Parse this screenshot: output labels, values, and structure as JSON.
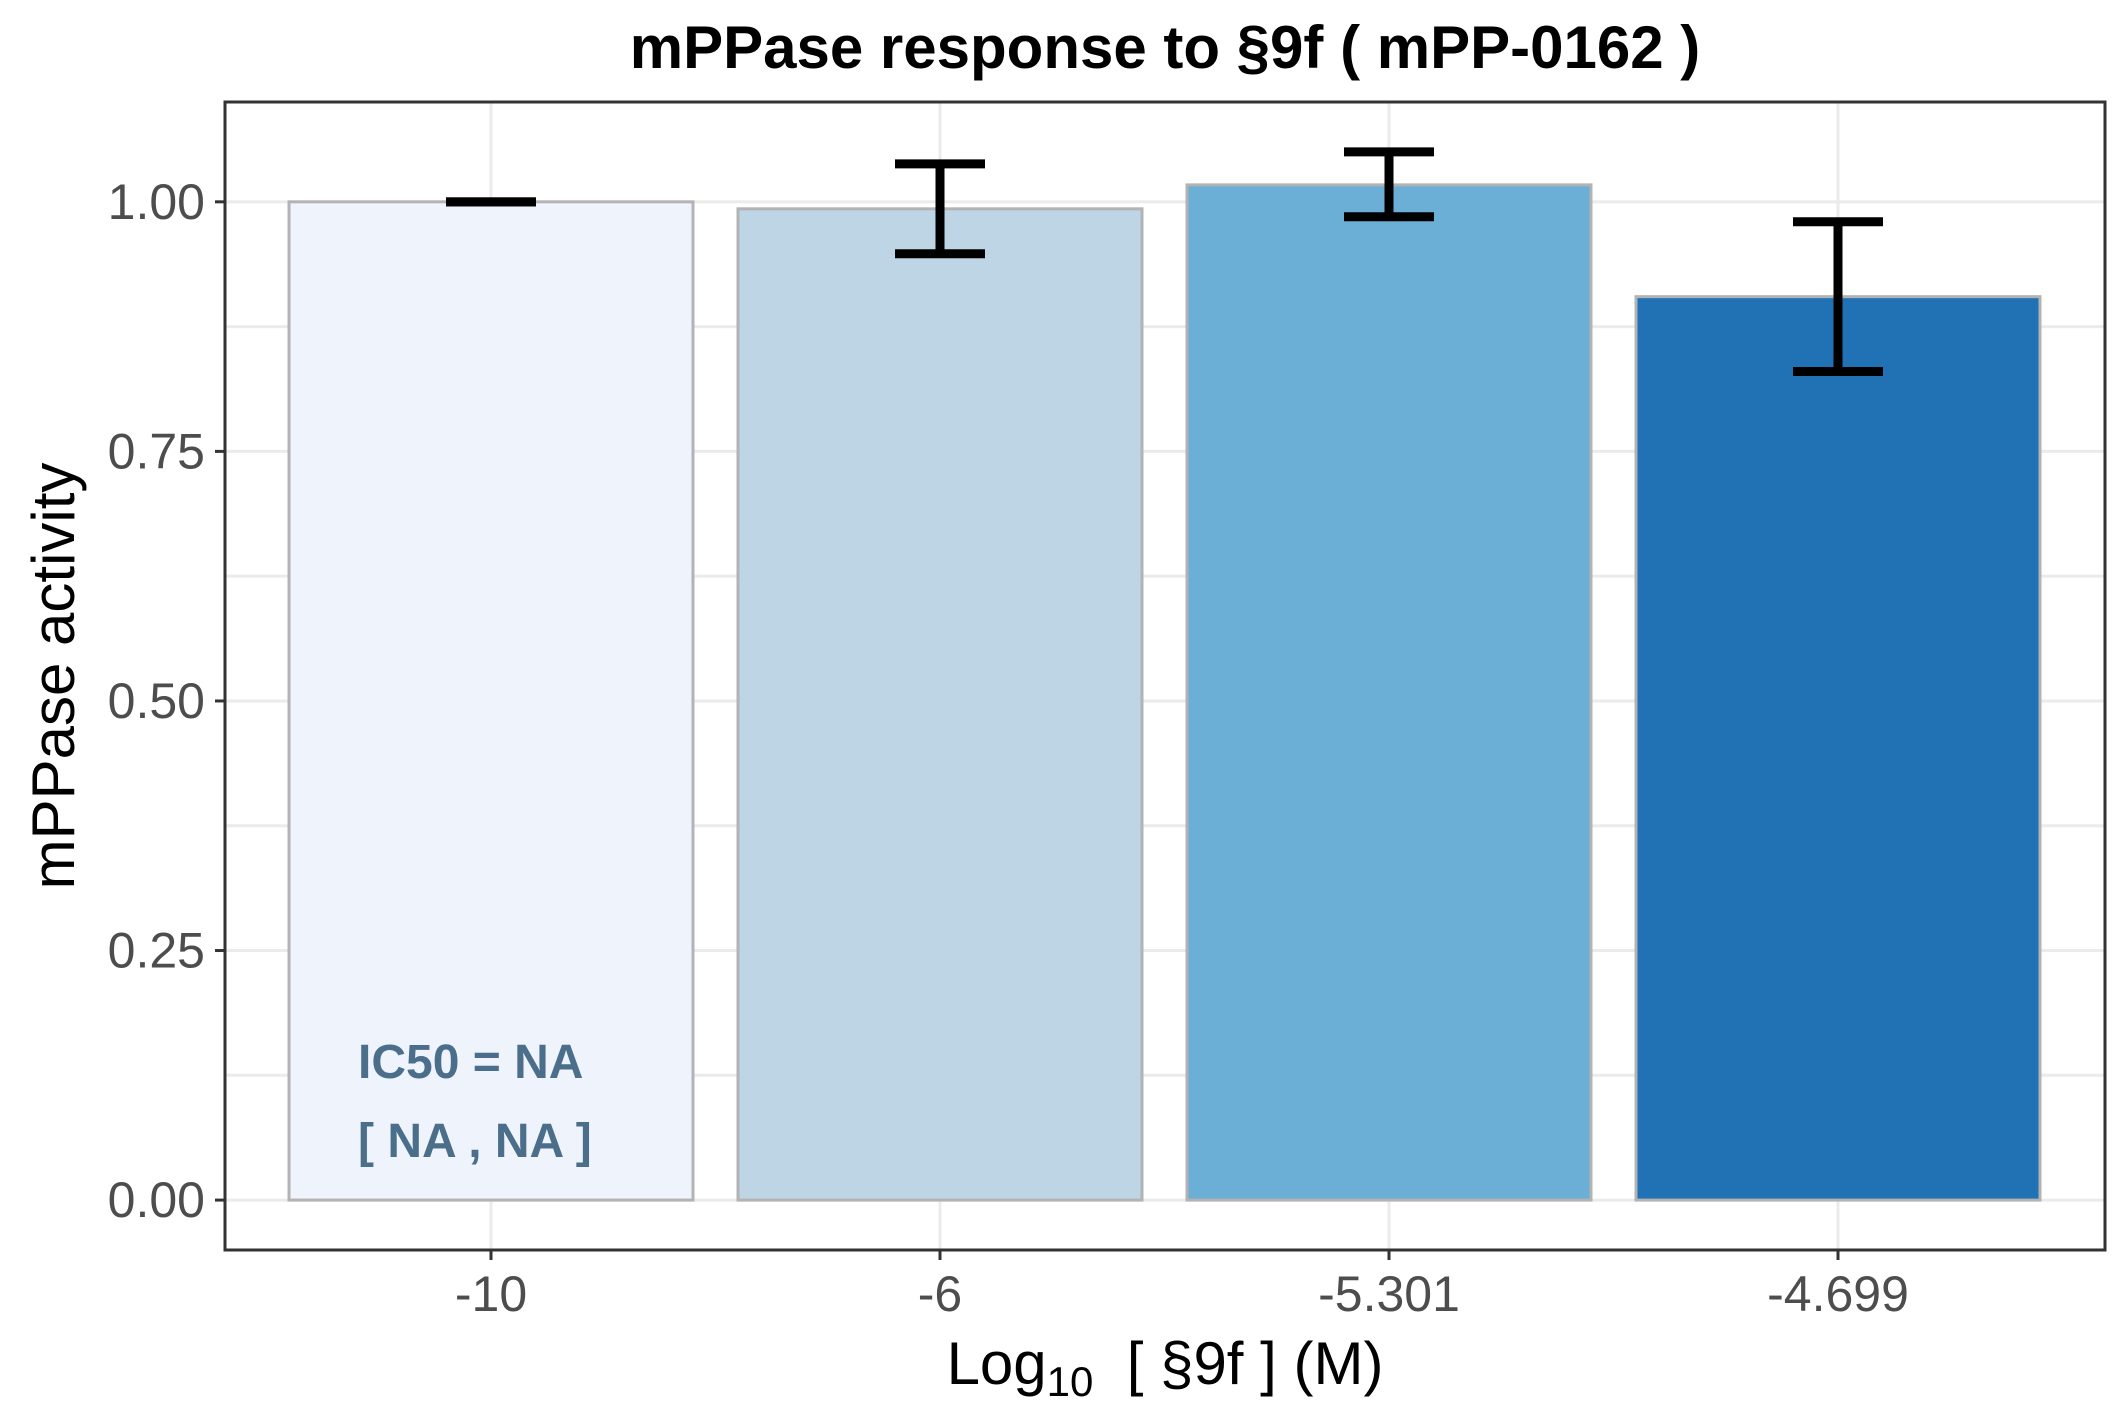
{
  "chart_data": {
    "type": "bar",
    "title": "mPPase response to §9f ( mPP-0162 )",
    "xlabel_main": "Log",
    "xlabel_sub": "10",
    "xlabel_rest": "  [ §9f ] (M)",
    "ylabel": "mPPase activity",
    "categories": [
      "-10",
      "-6",
      "-5.301",
      "-4.699"
    ],
    "values": [
      1.0,
      0.993,
      1.017,
      0.905
    ],
    "error_low": [
      1.0,
      0.948,
      0.985,
      0.83
    ],
    "error_high": [
      1.0,
      1.038,
      1.05,
      0.98
    ],
    "colors": [
      "#eef3fc",
      "#bed5e5",
      "#6baed6",
      "#2171b5"
    ],
    "ylim": [
      -0.05,
      1.1
    ],
    "yticks": [
      0.0,
      0.25,
      0.5,
      0.75,
      1.0
    ],
    "ytick_labels": [
      "0.00",
      "0.25",
      "0.50",
      "0.75",
      "1.00"
    ],
    "grid": true,
    "annotations": {
      "line1": "IC50 = NA",
      "line2": "[ NA , NA ]",
      "color": "#4b6f8b"
    }
  }
}
